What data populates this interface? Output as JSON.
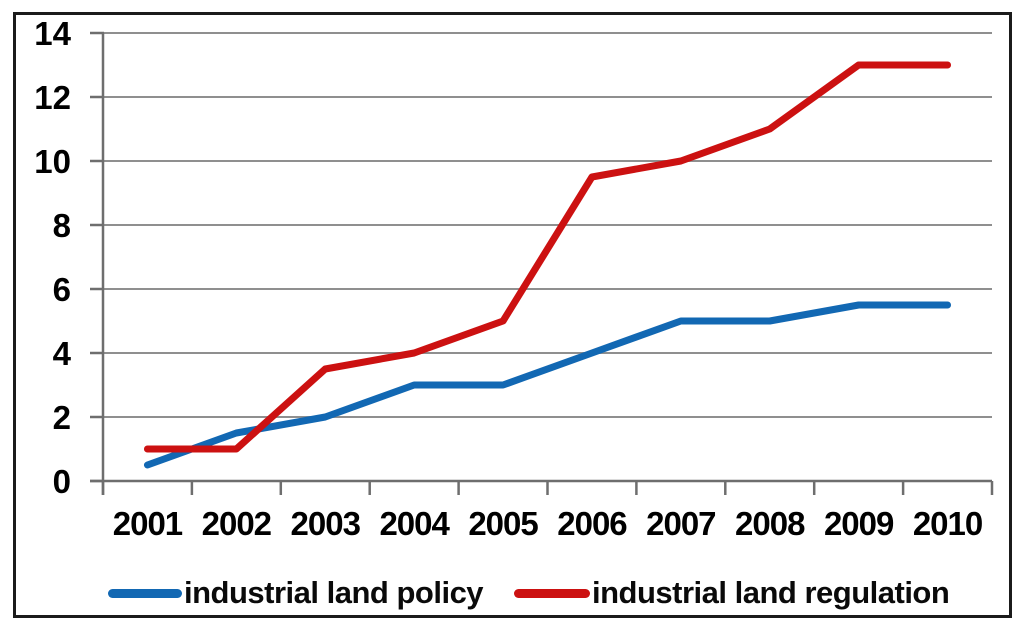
{
  "chart_data": {
    "type": "line",
    "title": "",
    "xlabel": "",
    "ylabel": "",
    "categories": [
      "2001",
      "2002",
      "2003",
      "2004",
      "2005",
      "2006",
      "2007",
      "2008",
      "2009",
      "2010"
    ],
    "series": [
      {
        "name": "industrial land policy",
        "color": "#1268b3",
        "values": [
          0.5,
          1.5,
          2,
          3,
          3,
          4,
          5,
          5,
          5.5,
          5.5
        ]
      },
      {
        "name": "industrial land regulation",
        "color": "#cc1111",
        "values": [
          1,
          1,
          3.5,
          4,
          5,
          9.5,
          10,
          11,
          13,
          13
        ]
      }
    ],
    "ylim": [
      0,
      14
    ],
    "yticks": [
      0,
      2,
      4,
      6,
      8,
      10,
      12,
      14
    ],
    "grid": true,
    "legend_position": "bottom"
  },
  "style_colors": {
    "gridline": "#8f8f8f",
    "axis": "#6e6e6e",
    "tick_label": "#000000",
    "frame_border": "#1b1b1b",
    "background": "#ffffff"
  }
}
